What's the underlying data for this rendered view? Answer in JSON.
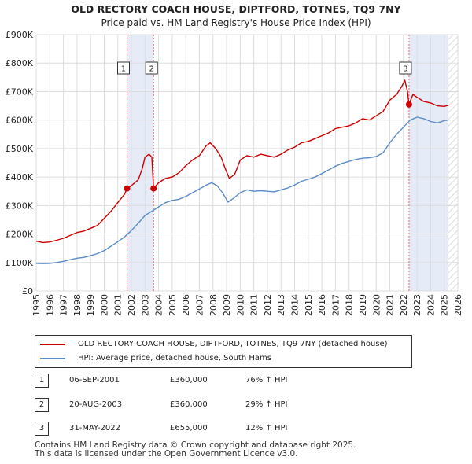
{
  "header": {
    "title": "OLD RECTORY COACH HOUSE, DIPTFORD, TOTNES, TQ9 7NY",
    "subtitle": "Price paid vs. HM Land Registry's House Price Index (HPI)"
  },
  "chart_data": {
    "type": "line",
    "title": "OLD RECTORY COACH HOUSE, DIPTFORD, TOTNES, TQ9 7NY",
    "subtitle": "Price paid vs. HM Land Registry's House Price Index (HPI)",
    "xlim": [
      1995,
      2026
    ],
    "ylim": [
      0,
      900000
    ],
    "x_ticks": [
      1995,
      1996,
      1997,
      1998,
      1999,
      2000,
      2001,
      2002,
      2003,
      2004,
      2005,
      2006,
      2007,
      2008,
      2009,
      2010,
      2011,
      2012,
      2013,
      2014,
      2015,
      2016,
      2017,
      2018,
      2019,
      2020,
      2021,
      2022,
      2023,
      2024,
      2025,
      2026
    ],
    "y_ticks": [
      {
        "value": 0,
        "label": "£0"
      },
      {
        "value": 100000,
        "label": "£100K"
      },
      {
        "value": 200000,
        "label": "£200K"
      },
      {
        "value": 300000,
        "label": "£300K"
      },
      {
        "value": 400000,
        "label": "£400K"
      },
      {
        "value": 500000,
        "label": "£500K"
      },
      {
        "value": 600000,
        "label": "£600K"
      },
      {
        "value": 700000,
        "label": "£700K"
      },
      {
        "value": 800000,
        "label": "£800K"
      },
      {
        "value": 900000,
        "label": "£900K"
      }
    ],
    "grid": true,
    "shaded_periods": [
      [
        2001.68,
        2003.63
      ],
      [
        2022.41,
        2025.3
      ]
    ],
    "hatched_from": 2025.3,
    "series": [
      {
        "name": "OLD RECTORY COACH HOUSE, DIPTFORD, TOTNES, TQ9 7NY (detached house)",
        "color": "#cc0000",
        "points": [
          [
            1995.0,
            175000
          ],
          [
            1995.5,
            170000
          ],
          [
            1996.0,
            172000
          ],
          [
            1996.5,
            178000
          ],
          [
            1997.0,
            185000
          ],
          [
            1997.5,
            195000
          ],
          [
            1998.0,
            205000
          ],
          [
            1998.5,
            210000
          ],
          [
            1999.0,
            220000
          ],
          [
            1999.5,
            230000
          ],
          [
            2000.0,
            255000
          ],
          [
            2000.5,
            280000
          ],
          [
            2001.0,
            310000
          ],
          [
            2001.5,
            340000
          ],
          [
            2001.68,
            360000
          ],
          [
            2002.0,
            370000
          ],
          [
            2002.5,
            390000
          ],
          [
            2002.8,
            430000
          ],
          [
            2003.0,
            470000
          ],
          [
            2003.3,
            480000
          ],
          [
            2003.5,
            470000
          ],
          [
            2003.63,
            360000
          ],
          [
            2004.0,
            380000
          ],
          [
            2004.5,
            395000
          ],
          [
            2005.0,
            400000
          ],
          [
            2005.5,
            415000
          ],
          [
            2006.0,
            440000
          ],
          [
            2006.5,
            460000
          ],
          [
            2007.0,
            475000
          ],
          [
            2007.5,
            510000
          ],
          [
            2007.8,
            520000
          ],
          [
            2008.2,
            500000
          ],
          [
            2008.6,
            470000
          ],
          [
            2008.9,
            430000
          ],
          [
            2009.2,
            395000
          ],
          [
            2009.6,
            410000
          ],
          [
            2010.0,
            460000
          ],
          [
            2010.5,
            475000
          ],
          [
            2011.0,
            470000
          ],
          [
            2011.5,
            480000
          ],
          [
            2012.0,
            475000
          ],
          [
            2012.5,
            470000
          ],
          [
            2013.0,
            480000
          ],
          [
            2013.5,
            495000
          ],
          [
            2014.0,
            505000
          ],
          [
            2014.5,
            520000
          ],
          [
            2015.0,
            525000
          ],
          [
            2015.5,
            535000
          ],
          [
            2016.0,
            545000
          ],
          [
            2016.5,
            555000
          ],
          [
            2017.0,
            570000
          ],
          [
            2017.5,
            575000
          ],
          [
            2018.0,
            580000
          ],
          [
            2018.5,
            590000
          ],
          [
            2019.0,
            605000
          ],
          [
            2019.5,
            600000
          ],
          [
            2020.0,
            615000
          ],
          [
            2020.5,
            630000
          ],
          [
            2021.0,
            670000
          ],
          [
            2021.5,
            690000
          ],
          [
            2021.9,
            720000
          ],
          [
            2022.1,
            740000
          ],
          [
            2022.3,
            700000
          ],
          [
            2022.41,
            655000
          ],
          [
            2022.7,
            690000
          ],
          [
            2023.0,
            680000
          ],
          [
            2023.5,
            665000
          ],
          [
            2024.0,
            660000
          ],
          [
            2024.5,
            650000
          ],
          [
            2025.0,
            648000
          ],
          [
            2025.3,
            652000
          ]
        ]
      },
      {
        "name": "HPI: Average price, detached house, South Hams",
        "color": "#5b8cc8",
        "points": [
          [
            1995.0,
            97000
          ],
          [
            1995.5,
            96000
          ],
          [
            1996.0,
            97000
          ],
          [
            1996.5,
            100000
          ],
          [
            1997.0,
            104000
          ],
          [
            1997.5,
            110000
          ],
          [
            1998.0,
            115000
          ],
          [
            1998.5,
            118000
          ],
          [
            1999.0,
            124000
          ],
          [
            1999.5,
            131000
          ],
          [
            2000.0,
            142000
          ],
          [
            2000.5,
            157000
          ],
          [
            2001.0,
            173000
          ],
          [
            2001.5,
            190000
          ],
          [
            2002.0,
            212000
          ],
          [
            2002.5,
            238000
          ],
          [
            2003.0,
            265000
          ],
          [
            2003.5,
            280000
          ],
          [
            2004.0,
            295000
          ],
          [
            2004.5,
            310000
          ],
          [
            2005.0,
            318000
          ],
          [
            2005.5,
            322000
          ],
          [
            2006.0,
            332000
          ],
          [
            2006.5,
            345000
          ],
          [
            2007.0,
            358000
          ],
          [
            2007.5,
            372000
          ],
          [
            2007.9,
            380000
          ],
          [
            2008.3,
            370000
          ],
          [
            2008.7,
            345000
          ],
          [
            2009.1,
            312000
          ],
          [
            2009.5,
            325000
          ],
          [
            2010.0,
            345000
          ],
          [
            2010.5,
            355000
          ],
          [
            2011.0,
            350000
          ],
          [
            2011.5,
            352000
          ],
          [
            2012.0,
            350000
          ],
          [
            2012.5,
            348000
          ],
          [
            2013.0,
            355000
          ],
          [
            2013.5,
            362000
          ],
          [
            2014.0,
            372000
          ],
          [
            2014.5,
            385000
          ],
          [
            2015.0,
            392000
          ],
          [
            2015.5,
            400000
          ],
          [
            2016.0,
            412000
          ],
          [
            2016.5,
            425000
          ],
          [
            2017.0,
            438000
          ],
          [
            2017.5,
            448000
          ],
          [
            2018.0,
            455000
          ],
          [
            2018.5,
            462000
          ],
          [
            2019.0,
            466000
          ],
          [
            2019.5,
            468000
          ],
          [
            2020.0,
            472000
          ],
          [
            2020.5,
            485000
          ],
          [
            2021.0,
            520000
          ],
          [
            2021.5,
            550000
          ],
          [
            2022.0,
            575000
          ],
          [
            2022.5,
            600000
          ],
          [
            2023.0,
            610000
          ],
          [
            2023.5,
            605000
          ],
          [
            2024.0,
            595000
          ],
          [
            2024.5,
            590000
          ],
          [
            2025.0,
            598000
          ],
          [
            2025.3,
            600000
          ]
        ]
      }
    ],
    "transactions": [
      {
        "num": "1",
        "x": 2001.68,
        "y": 360000
      },
      {
        "num": "2",
        "x": 2003.63,
        "y": 360000
      },
      {
        "num": "3",
        "x": 2022.41,
        "y": 655000
      }
    ]
  },
  "legend": {
    "items": [
      {
        "label": "OLD RECTORY COACH HOUSE, DIPTFORD, TOTNES, TQ9 7NY (detached house)",
        "color": "#cc0000"
      },
      {
        "label": "HPI: Average price, detached house, South Hams",
        "color": "#5b8cc8"
      }
    ]
  },
  "transactions_table": [
    {
      "num": "1",
      "date": "06-SEP-2001",
      "price": "£360,000",
      "hpi": "76% ↑ HPI"
    },
    {
      "num": "2",
      "date": "20-AUG-2003",
      "price": "£360,000",
      "hpi": "29% ↑ HPI"
    },
    {
      "num": "3",
      "date": "31-MAY-2022",
      "price": "£655,000",
      "hpi": "12% ↑ HPI"
    }
  ],
  "footer": {
    "line1": "Contains HM Land Registry data © Crown copyright and database right 2025.",
    "line2": "This data is licensed under the Open Government Licence v3.0."
  }
}
